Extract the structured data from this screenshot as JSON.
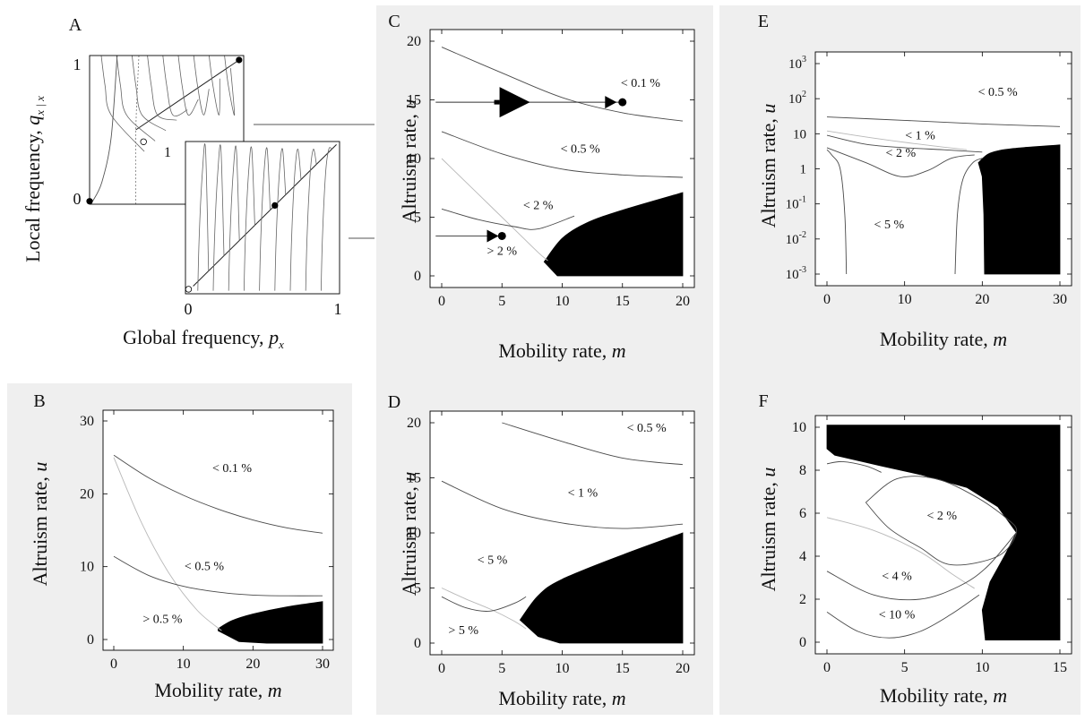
{
  "chart_data": [
    {
      "panel": "A",
      "type": "phase-plot",
      "xlabel_main": "Global frequency,",
      "xlabel_var": "p",
      "xlabel_sub": "x",
      "ylabel_main": "Local frequency,",
      "ylabel_var": "q",
      "ylabel_sub": "x | x",
      "back": {
        "label": "",
        "y_tick_labels": [
          "1",
          "0"
        ],
        "inner_label": "1",
        "stable_points": [
          [
            0.0,
            0.02
          ],
          [
            0.97,
            0.97
          ]
        ],
        "unstable_points": [
          [
            0.35,
            0.42
          ]
        ]
      },
      "front": {
        "x_tick_labels": [
          "0",
          "1"
        ],
        "stable_points": [
          [
            0.58,
            0.58
          ]
        ],
        "unstable_points": [
          [
            0.02,
            0.03
          ]
        ]
      }
    },
    {
      "panel": "B",
      "type": "area",
      "xlabel_main": "Mobility rate,",
      "xlabel_var": "m",
      "ylabel_main": "Altruism rate,",
      "ylabel_var": "u",
      "xlim": [
        0,
        30
      ],
      "ylim": [
        0,
        30
      ],
      "xticks": [
        0,
        10,
        20,
        30
      ],
      "yticks": [
        0,
        10,
        20,
        30
      ],
      "contours": [
        {
          "points": [
            [
              0,
              25.3
            ],
            [
              5,
              22.2
            ],
            [
              10,
              19.8
            ],
            [
              15,
              17.9
            ],
            [
              20,
              16.4
            ],
            [
              25,
              15.3
            ],
            [
              30,
              14.6
            ]
          ]
        },
        {
          "points": [
            [
              0,
              11.4
            ],
            [
              5,
              8.8
            ],
            [
              10,
              7.3
            ],
            [
              15,
              6.5
            ],
            [
              20,
              6.1
            ],
            [
              25,
              6.0
            ],
            [
              30,
              6.0
            ]
          ]
        }
      ],
      "grey_curve": [
        [
          0,
          25
        ],
        [
          4,
          16
        ],
        [
          8,
          9
        ],
        [
          12,
          4
        ],
        [
          15.5,
          1.2
        ]
      ],
      "black_region": {
        "upper": [
          [
            15,
            1.5
          ],
          [
            17,
            2.6
          ],
          [
            20,
            3.5
          ],
          [
            25,
            4.5
          ],
          [
            30,
            5.2
          ]
        ],
        "lower": [
          [
            30,
            -0.5
          ],
          [
            22,
            -0.5
          ],
          [
            18,
            -0.3
          ],
          [
            15,
            1.2
          ]
        ]
      },
      "labels": [
        {
          "text": "< 0.1 %",
          "at": [
            17,
            23
          ]
        },
        {
          "text": "< 0.5 %",
          "at": [
            13,
            9.5
          ]
        },
        {
          "text": "> 0.5 %",
          "at": [
            7,
            2.3
          ]
        }
      ]
    },
    {
      "panel": "C",
      "type": "area",
      "xlabel_main": "Mobility rate,",
      "xlabel_var": "m",
      "ylabel_main": "Altruism rate,",
      "ylabel_var": "u",
      "xlim": [
        0,
        20
      ],
      "ylim": [
        0,
        20
      ],
      "xticks": [
        0,
        5,
        10,
        15,
        20
      ],
      "yticks": [
        0,
        5,
        10,
        15,
        20
      ],
      "contours": [
        {
          "points": [
            [
              0,
              19.5
            ],
            [
              5,
              17.3
            ],
            [
              10,
              15.2
            ],
            [
              15,
              13.9
            ],
            [
              20,
              13.2
            ]
          ]
        },
        {
          "points": [
            [
              0,
              12.3
            ],
            [
              5,
              10.4
            ],
            [
              10,
              9.1
            ],
            [
              15,
              8.6
            ],
            [
              20,
              8.4
            ]
          ]
        },
        {
          "points": [
            [
              0,
              5.7
            ],
            [
              3,
              4.8
            ],
            [
              6,
              4.2
            ],
            [
              8,
              4.0
            ],
            [
              11,
              5.1
            ]
          ]
        }
      ],
      "grey_curve": [
        [
          0,
          10
        ],
        [
          3,
          7
        ],
        [
          6,
          4
        ],
        [
          8,
          2
        ],
        [
          8.8,
          1.3
        ]
      ],
      "black_region": {
        "upper": [
          [
            8.5,
            1.2
          ],
          [
            10,
            3.2
          ],
          [
            12,
            4.5
          ],
          [
            15,
            5.6
          ],
          [
            20,
            7.1
          ]
        ],
        "lower": [
          [
            20,
            0
          ],
          [
            9.6,
            0
          ],
          [
            8.5,
            1.2
          ]
        ]
      },
      "arrows": [
        {
          "y": 14.8,
          "x_start": -0.5,
          "x_end": 15,
          "big_marker_at": 4.8,
          "small_marker_at": 14
        },
        {
          "y": 3.4,
          "x_start": -0.5,
          "x_end": 5,
          "small_marker_at": 4.2
        }
      ],
      "labels": [
        {
          "text": "< 0.1 %",
          "at": [
            16.5,
            16.1
          ]
        },
        {
          "text": "< 0.5 %",
          "at": [
            11.5,
            10.5
          ]
        },
        {
          "text": "< 2 %",
          "at": [
            8,
            5.7
          ]
        },
        {
          "text": "> 2 %",
          "at": [
            5,
            1.8
          ]
        }
      ]
    },
    {
      "panel": "D",
      "type": "area",
      "xlabel_main": "Mobility rate,",
      "xlabel_var": "m",
      "ylabel_main": "Altruism rate,",
      "ylabel_var": "u",
      "xlim": [
        0,
        20
      ],
      "ylim": [
        0,
        20
      ],
      "xticks": [
        0,
        5,
        10,
        15,
        20
      ],
      "yticks": [
        0,
        5,
        10,
        15,
        20
      ],
      "contours": [
        {
          "points": [
            [
              5,
              20
            ],
            [
              10,
              18.3
            ],
            [
              15,
              16.8
            ],
            [
              20,
              16.2
            ]
          ]
        },
        {
          "points": [
            [
              0,
              14.7
            ],
            [
              5,
              12.2
            ],
            [
              10,
              10.9
            ],
            [
              15,
              10.4
            ],
            [
              20,
              10.8
            ]
          ]
        },
        {
          "points": [
            [
              0,
              4.2
            ],
            [
              2,
              3.2
            ],
            [
              4,
              2.9
            ],
            [
              6,
              3.6
            ],
            [
              7,
              4.2
            ]
          ]
        }
      ],
      "grey_curve": [
        [
          0,
          5
        ],
        [
          2,
          4
        ],
        [
          4,
          3.1
        ],
        [
          6,
          2
        ],
        [
          7,
          1.3
        ]
      ],
      "black_region": {
        "upper": [
          [
            6.5,
            2.1
          ],
          [
            8,
            4.3
          ],
          [
            10,
            5.8
          ],
          [
            15,
            8
          ],
          [
            20,
            10
          ]
        ],
        "lower": [
          [
            20,
            0
          ],
          [
            9.8,
            0
          ],
          [
            8,
            0.6
          ],
          [
            6.5,
            2.1
          ]
        ]
      },
      "labels": [
        {
          "text": "< 0.5 %",
          "at": [
            17,
            19.2
          ]
        },
        {
          "text": "< 1 %",
          "at": [
            11.7,
            13.3
          ]
        },
        {
          "text": "< 5 %",
          "at": [
            4.2,
            7.2
          ]
        },
        {
          "text": "> 5 %",
          "at": [
            1.8,
            0.8
          ]
        }
      ]
    },
    {
      "panel": "E",
      "type": "area",
      "xlabel_main": "Mobility rate,",
      "xlabel_var": "m",
      "ylabel_main": "Altruism rate,",
      "ylabel_var": "u",
      "xlim": [
        0,
        30
      ],
      "ylim": [
        0.001,
        1000
      ],
      "yscale": "log",
      "xticks": [
        0,
        10,
        20,
        30
      ],
      "yticks": [
        0.001,
        0.01,
        0.1,
        1,
        10,
        100,
        1000
      ],
      "ytick_labels": [
        {
          "base": "10",
          "exp": "-3"
        },
        {
          "base": "10",
          "exp": "-2"
        },
        {
          "base": "10",
          "exp": "-1"
        },
        {
          "base": "1",
          "exp": ""
        },
        {
          "base": "10",
          "exp": ""
        },
        {
          "base": "10",
          "exp": "2"
        },
        {
          "base": "10",
          "exp": "3"
        }
      ],
      "contours": [
        {
          "points": [
            [
              0,
              30
            ],
            [
              10,
              24
            ],
            [
              20,
              19
            ],
            [
              30,
              16
            ]
          ]
        },
        {
          "points": [
            [
              0,
              9
            ],
            [
              5,
              5
            ],
            [
              10,
              4
            ],
            [
              15,
              3.5
            ],
            [
              20,
              3
            ]
          ]
        },
        {
          "points": [
            [
              2.5,
              0.001
            ],
            [
              2.3,
              0.05
            ],
            [
              1.7,
              1
            ],
            [
              0.6,
              2.5
            ],
            [
              0,
              3.5
            ]
          ]
        },
        {
          "points": [
            [
              0,
              4
            ],
            [
              5,
              1.5
            ],
            [
              9.5,
              0.6
            ],
            [
              13,
              0.9
            ],
            [
              16,
              2
            ],
            [
              19,
              2.5
            ]
          ]
        },
        {
          "points": [
            [
              16.5,
              0.001
            ],
            [
              16.8,
              0.05
            ],
            [
              17.5,
              0.5
            ],
            [
              18.8,
              1.5
            ],
            [
              20,
              2
            ]
          ]
        }
      ],
      "grey_curve": [
        [
          0,
          12
        ],
        [
          6,
          7.5
        ],
        [
          12,
          5
        ],
        [
          18,
          3.5
        ]
      ],
      "black_region": {
        "upper": [
          [
            19.5,
            1.5
          ],
          [
            21,
            2.8
          ],
          [
            24,
            3.8
          ],
          [
            30,
            4.8
          ]
        ],
        "lower": [
          [
            30,
            0.001
          ],
          [
            20.3,
            0.001
          ],
          [
            20.2,
            0.05
          ],
          [
            20,
            0.6
          ],
          [
            19.5,
            1.5
          ]
        ]
      },
      "labels": [
        {
          "text": "< 0.5 %",
          "at": [
            22,
            120
          ]
        },
        {
          "text": "< 1 %",
          "at": [
            12,
            7
          ]
        },
        {
          "text": "< 2 %",
          "at": [
            9.5,
            2.2
          ]
        },
        {
          "text": "< 5 %",
          "at": [
            8,
            0.02
          ]
        }
      ]
    },
    {
      "panel": "F",
      "type": "area",
      "xlabel_main": "Mobility rate,",
      "xlabel_var": "m",
      "ylabel_main": "Altruism rate,",
      "ylabel_var": "u",
      "xlim": [
        0,
        15
      ],
      "ylim": [
        0,
        10
      ],
      "xticks": [
        0,
        5,
        10,
        15
      ],
      "yticks": [
        0,
        2,
        4,
        6,
        8,
        10
      ],
      "contours": [
        {
          "points": [
            [
              2.5,
              6.5
            ],
            [
              4.5,
              7.6
            ],
            [
              7,
              7.6
            ],
            [
              9.5,
              6.8
            ],
            [
              11.5,
              5.8
            ],
            [
              12.2,
              5.1
            ],
            [
              11,
              4
            ],
            [
              8,
              3.6
            ],
            [
              6,
              4.4
            ],
            [
              4,
              5.3
            ],
            [
              2.5,
              6.5
            ]
          ]
        },
        {
          "points": [
            [
              0,
              3.3
            ],
            [
              3,
              2.2
            ],
            [
              6,
              2
            ],
            [
              8.5,
              2.6
            ],
            [
              10.3,
              3.5
            ],
            [
              12.2,
              5.1
            ]
          ]
        },
        {
          "points": [
            [
              0,
              1.4
            ],
            [
              2,
              0.5
            ],
            [
              4,
              0.2
            ],
            [
              6,
              0.5
            ],
            [
              8,
              1.3
            ],
            [
              9.8,
              2.2
            ]
          ]
        },
        {
          "points": [
            [
              0,
              8.3
            ],
            [
              1,
              8.4
            ],
            [
              2.5,
              8.2
            ],
            [
              3.5,
              7.9
            ]
          ]
        }
      ],
      "grey_curve": [
        [
          0,
          5.8
        ],
        [
          3,
          5.2
        ],
        [
          6,
          4.2
        ],
        [
          8,
          3.2
        ],
        [
          9.5,
          2.5
        ]
      ],
      "black_region": {
        "outline": [
          [
            0,
            10.1
          ],
          [
            15,
            10.1
          ],
          [
            15,
            0.1
          ],
          [
            10.2,
            0.1
          ],
          [
            10,
            1.5
          ],
          [
            10.5,
            2.8
          ],
          [
            11.5,
            4.1
          ],
          [
            12.2,
            5.1
          ],
          [
            11,
            6.3
          ],
          [
            9,
            7.2
          ],
          [
            6,
            7.8
          ],
          [
            3.5,
            8.2
          ],
          [
            0.5,
            8.7
          ],
          [
            0,
            9
          ]
        ]
      },
      "labels": [
        {
          "text": "< 2  %",
          "at": [
            7.4,
            5.7
          ]
        },
        {
          "text": "< 4  %",
          "at": [
            4.5,
            2.9
          ]
        },
        {
          "text": "< 10  %",
          "at": [
            4.5,
            1.1
          ]
        }
      ]
    }
  ]
}
